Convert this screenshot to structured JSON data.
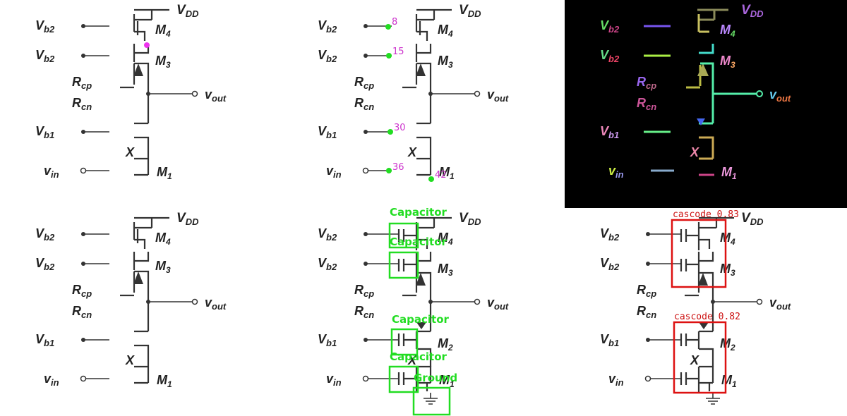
{
  "labels": {
    "vdd": "V",
    "vdd_sub": "DD",
    "vb2": "V",
    "vb2_sub": "b2",
    "vb1": "V",
    "vb1_sub": "b1",
    "vin": "v",
    "vin_sub": "in",
    "vout": "v",
    "vout_sub": "out",
    "rcp": "R",
    "rcp_sub": "cp",
    "rcn": "R",
    "rcn_sub": "cn",
    "x": "X",
    "m4": "M",
    "m4_sub": "4",
    "m3": "M",
    "m3_sub": "3",
    "m2": "M",
    "m2_sub": "2",
    "m1": "M",
    "m1_sub": "1"
  },
  "keypoints": [
    "8",
    "15",
    "30",
    "36",
    "42"
  ],
  "detections_green": [
    {
      "label": "Capacitor"
    },
    {
      "label": "Capacitor"
    },
    {
      "label": "Capacitor"
    },
    {
      "label": "Capacitor"
    },
    {
      "label": "Ground"
    }
  ],
  "detections_red": [
    {
      "label": "cascode 0.83"
    },
    {
      "label": "cascode 0.82"
    }
  ],
  "colors": {
    "keypoint": "#22dd22",
    "keypoint_text": "#cc33cc",
    "green_box": "#22dd22",
    "red_box": "#dd1111",
    "mask_bg": "#000000"
  }
}
